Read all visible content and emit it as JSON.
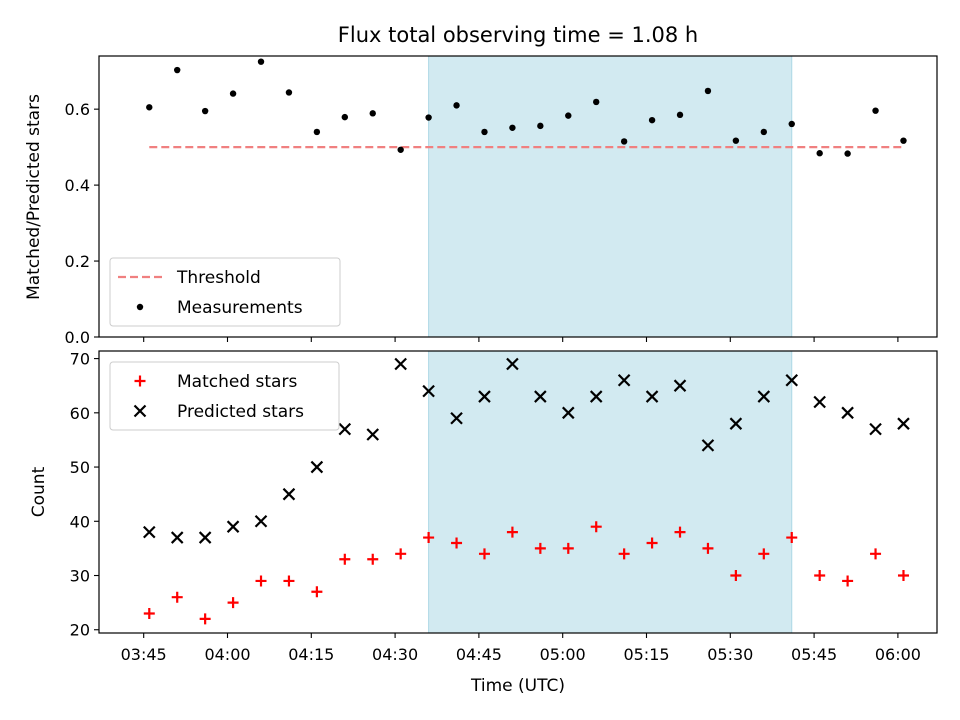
{
  "figure": {
    "title": "Flux total observing time = 1.08 h",
    "xlabel": "Time (UTC)",
    "xtick_labels": [
      "03:45",
      "04:00",
      "04:15",
      "04:30",
      "04:45",
      "05:00",
      "05:15",
      "05:30",
      "05:45",
      "06:00"
    ],
    "highlight_color": "#add8e6"
  },
  "chart_data": [
    {
      "type": "scatter",
      "panel": "top",
      "ylabel": "Matched/Predicted stars",
      "ylim": [
        0,
        0.74
      ],
      "yticks": [
        0.0,
        0.2,
        0.4,
        0.6
      ],
      "ytick_labels": [
        "0.0",
        "0.2",
        "0.4",
        "0.6"
      ],
      "xlim": [
        "03:37",
        "06:07"
      ],
      "highlight_span": [
        "04:36",
        "05:41"
      ],
      "legend_position": "lower-left",
      "series": [
        {
          "name": "Threshold",
          "type": "line",
          "style": "dashed",
          "color": "#f08080",
          "x": [
            "03:46",
            "06:01"
          ],
          "y": [
            0.5,
            0.5
          ]
        },
        {
          "name": "Measurements",
          "type": "scatter",
          "marker": "dot",
          "color": "#000000",
          "x": [
            "03:46",
            "03:51",
            "03:56",
            "04:01",
            "04:06",
            "04:11",
            "04:16",
            "04:21",
            "04:26",
            "04:31",
            "04:36",
            "04:41",
            "04:46",
            "04:51",
            "04:56",
            "05:01",
            "05:06",
            "05:11",
            "05:16",
            "05:21",
            "05:26",
            "05:31",
            "05:36",
            "05:41",
            "05:46",
            "05:51",
            "05:56",
            "06:01"
          ],
          "y": [
            0.605,
            0.703,
            0.595,
            0.641,
            0.725,
            0.644,
            0.54,
            0.579,
            0.589,
            0.493,
            0.578,
            0.61,
            0.54,
            0.551,
            0.556,
            0.583,
            0.619,
            0.515,
            0.571,
            0.585,
            0.648,
            0.517,
            0.54,
            0.561,
            0.484,
            0.483,
            0.596,
            0.517
          ]
        }
      ]
    },
    {
      "type": "scatter",
      "panel": "bottom",
      "ylabel": "Count",
      "ylim": [
        19.4,
        71.4
      ],
      "yticks": [
        20,
        30,
        40,
        50,
        60,
        70
      ],
      "ytick_labels": [
        "20",
        "30",
        "40",
        "50",
        "60",
        "70"
      ],
      "xlim": [
        "03:37",
        "06:07"
      ],
      "highlight_span": [
        "04:36",
        "05:41"
      ],
      "legend_position": "upper-left",
      "series": [
        {
          "name": "Matched stars",
          "marker": "plus",
          "color": "#ff0000",
          "x": [
            "03:46",
            "03:51",
            "03:56",
            "04:01",
            "04:06",
            "04:11",
            "04:16",
            "04:21",
            "04:26",
            "04:31",
            "04:36",
            "04:41",
            "04:46",
            "04:51",
            "04:56",
            "05:01",
            "05:06",
            "05:11",
            "05:16",
            "05:21",
            "05:26",
            "05:31",
            "05:36",
            "05:41",
            "05:46",
            "05:51",
            "05:56",
            "06:01"
          ],
          "y": [
            23,
            26,
            22,
            25,
            29,
            29,
            27,
            33,
            33,
            34,
            37,
            36,
            34,
            38,
            35,
            35,
            39,
            34,
            36,
            38,
            35,
            30,
            34,
            37,
            30,
            29,
            34,
            30
          ]
        },
        {
          "name": "Predicted stars",
          "marker": "x",
          "color": "#000000",
          "x": [
            "03:46",
            "03:51",
            "03:56",
            "04:01",
            "04:06",
            "04:11",
            "04:16",
            "04:21",
            "04:26",
            "04:31",
            "04:36",
            "04:41",
            "04:46",
            "04:51",
            "04:56",
            "05:01",
            "05:06",
            "05:11",
            "05:16",
            "05:21",
            "05:26",
            "05:31",
            "05:36",
            "05:41",
            "05:46",
            "05:51",
            "05:56",
            "06:01"
          ],
          "y": [
            38,
            37,
            37,
            39,
            40,
            45,
            50,
            57,
            56,
            69,
            64,
            59,
            63,
            69,
            63,
            60,
            63,
            66,
            63,
            65,
            54,
            58,
            63,
            66,
            62,
            60,
            57,
            58
          ]
        }
      ]
    }
  ]
}
